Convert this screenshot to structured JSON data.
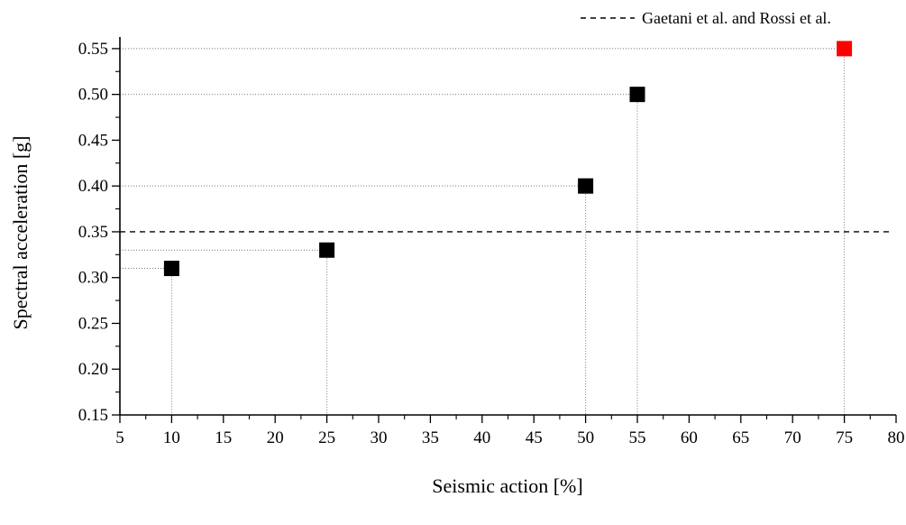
{
  "chart_data": {
    "type": "scatter",
    "xlabel": "Seismic action [%]",
    "ylabel": "Spectral acceleration [g]",
    "xlim": [
      5,
      80
    ],
    "ylim": [
      0.15,
      0.55
    ],
    "x_ticks": [
      5,
      10,
      15,
      20,
      25,
      30,
      35,
      40,
      45,
      50,
      55,
      60,
      65,
      70,
      75,
      80
    ],
    "x_tick_labels": [
      "5",
      "10",
      "15",
      "20",
      "25",
      "30",
      "35",
      "40",
      "45",
      "50",
      "55",
      "60",
      "65",
      "70",
      "75",
      "80"
    ],
    "y_ticks": [
      0.15,
      0.2,
      0.25,
      0.3,
      0.35,
      0.4,
      0.45,
      0.5,
      0.55
    ],
    "y_tick_labels": [
      "0.15",
      "0.20",
      "0.25",
      "0.30",
      "0.35",
      "0.40",
      "0.45",
      "0.50",
      "0.55"
    ],
    "points": [
      {
        "x": 10,
        "y": 0.31,
        "color": "#000000"
      },
      {
        "x": 25,
        "y": 0.33,
        "color": "#000000"
      },
      {
        "x": 50,
        "y": 0.4,
        "color": "#000000"
      },
      {
        "x": 55,
        "y": 0.5,
        "color": "#000000"
      },
      {
        "x": 75,
        "y": 0.55,
        "color": "#ff0000"
      }
    ],
    "reference_line": {
      "y": 0.35,
      "style": "dashed",
      "color": "#000000",
      "label": "Gaetani et al. and Rossi et al."
    },
    "drop_lines": "dotted",
    "legend": {
      "position": "top-right",
      "entries": [
        "Gaetani et al. and Rossi et al."
      ]
    },
    "grid": false
  }
}
